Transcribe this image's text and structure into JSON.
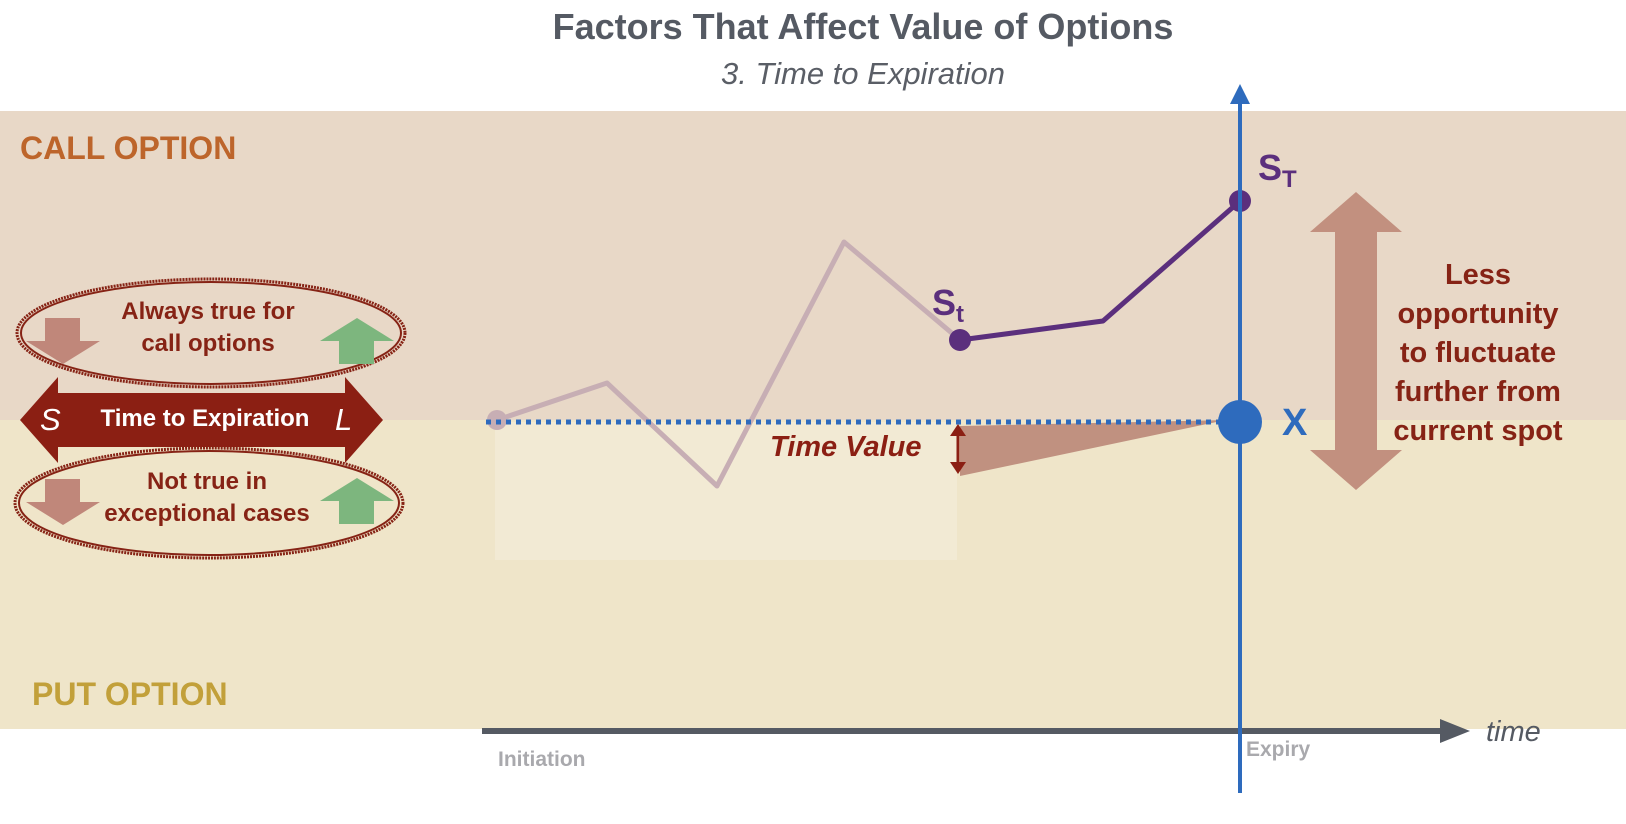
{
  "title": "Factors That Affect Value of Options",
  "subtitle": "3. Time to Expiration",
  "bands": {
    "call_label": "CALL OPTION",
    "put_label": "PUT OPTION",
    "call_color": "#e8d8c7",
    "put_color": "#efe5c9"
  },
  "factor_box": {
    "top_oval": [
      "Always true for",
      "call options"
    ],
    "banner_left": "S",
    "banner_text": "Time to Expiration",
    "banner_right": "L",
    "bottom_oval": [
      "Not true in",
      "exceptional cases"
    ]
  },
  "chart": {
    "st_label": "S",
    "st_sub": "t",
    "sT_label": "S",
    "sT_sub": "T",
    "strike_label": "X",
    "time_value_label": "Time Value",
    "arrow_text": [
      "Less",
      "opportunity",
      "to fluctuate",
      "further from",
      "current spot"
    ],
    "x_axis_label": "time",
    "initiation_label": "Initiation",
    "expiry_label": "Expiry"
  },
  "colors": {
    "title": "#555a63",
    "call_accent": "#bd652b",
    "put_accent": "#c2a03a",
    "dark_red": "#862315",
    "blue": "#2e6bbd",
    "purple": "#5b2f7d",
    "green_arrow": "#7db67e",
    "red_arrow": "#c0877a"
  }
}
